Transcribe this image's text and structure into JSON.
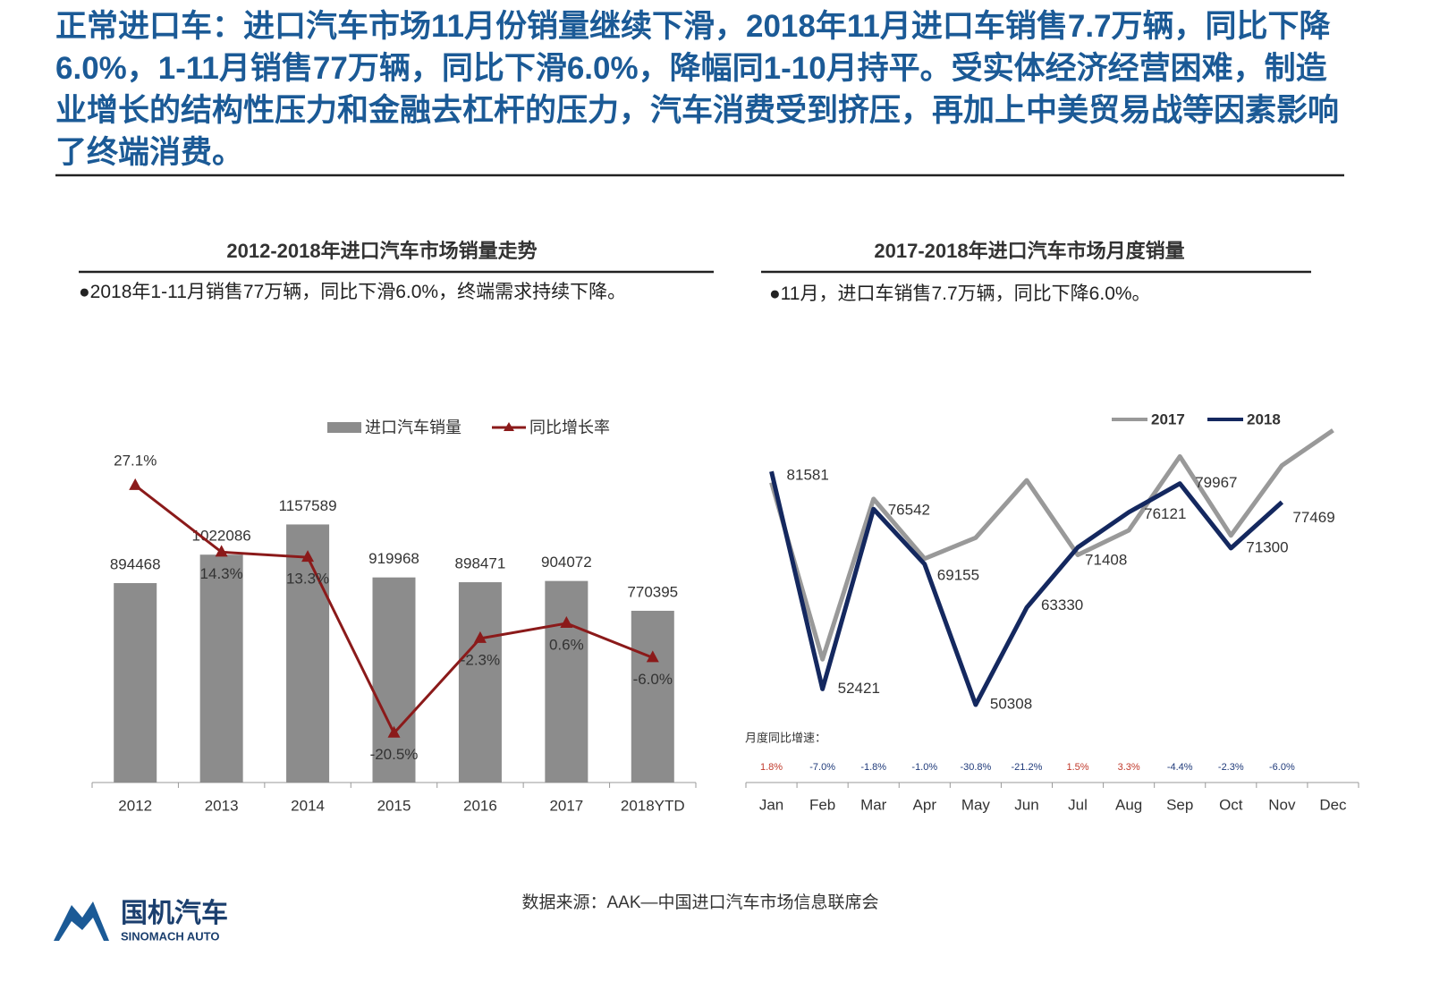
{
  "header": {
    "text": "正常进口车：进口汽车市场11月份销量继续下滑，2018年11月进口车销售7.7万辆，同比下降6.0%，1-11月销售77万辆，同比下滑6.0%，降幅同1-10月持平。受实体经济经营困难，制造业增长的结构性压力和金融去杠杆的压力，汽车消费受到挤压，再加上中美贸易战等因素影响了终端消费。"
  },
  "chart_data": [
    {
      "type": "combo",
      "title": "2012-2018年进口汽车市场销量走势",
      "note": "●2018年1-11月销售77万辆，同比下滑6.0%，终端需求持续下降。",
      "categories": [
        "2012",
        "2013",
        "2014",
        "2015",
        "2016",
        "2017",
        "2018YTD"
      ],
      "series": [
        {
          "name": "进口汽车销量",
          "type": "bar",
          "color": "#8c8c8c",
          "values": [
            894468,
            1022086,
            1157589,
            919968,
            898471,
            904072,
            770395
          ]
        },
        {
          "name": "同比增长率",
          "type": "line",
          "axis": "y2",
          "color": "#8b1a1a",
          "values": [
            27.1,
            14.3,
            13.3,
            -20.5,
            -2.3,
            0.6,
            -6.0
          ],
          "value_labels": [
            "27.1%",
            "14.3%",
            "13.3%",
            "-20.5%",
            "-2.3%",
            "0.6%",
            "-6.0%"
          ]
        }
      ],
      "ylim": [
        0,
        1400000
      ],
      "y2lim": [
        -30,
        30
      ]
    },
    {
      "type": "line",
      "title": "2017-2018年进口汽车市场月度销量",
      "note": "●11月，进口车销售7.7万辆，同比下降6.0%。",
      "categories": [
        "Jan",
        "Feb",
        "Mar",
        "Apr",
        "May",
        "Jun",
        "Jul",
        "Aug",
        "Sep",
        "Oct",
        "Nov",
        "Dec"
      ],
      "series": [
        {
          "name": "2017",
          "color": "#999999",
          "labeled": false,
          "values": [
            80100,
            56400,
            77900,
            69900,
            72700,
            80400,
            70400,
            73700,
            83600,
            73000,
            82400,
            87100
          ]
        },
        {
          "name": "2018",
          "color": "#14285f",
          "labeled": true,
          "values": [
            81581,
            52421,
            76542,
            69155,
            50308,
            63330,
            71408,
            76121,
            79967,
            71300,
            77469,
            null
          ]
        }
      ],
      "ylim": [
        40000,
        90000
      ],
      "growth_title": "月度同比增速：",
      "growth": [
        1.8,
        -7.0,
        -1.8,
        -1.0,
        -30.8,
        -21.2,
        1.5,
        3.3,
        -4.4,
        -2.3,
        -6.0,
        null
      ],
      "growth_labels": [
        "1.8%",
        "-7.0%",
        "-1.8%",
        "-1.0%",
        "-30.8%",
        "-21.2%",
        "1.5%",
        "3.3%",
        "-4.4%",
        "-2.3%",
        "-6.0%",
        null
      ],
      "growth_colors": {
        "positive": "#c0392b",
        "negative": "#1f3a7a"
      }
    }
  ],
  "source": "数据来源：AAK—中国进口汽车市场信息联席会",
  "logo": {
    "name": "国机汽车",
    "subtitle": "SINOMACH AUTO"
  }
}
